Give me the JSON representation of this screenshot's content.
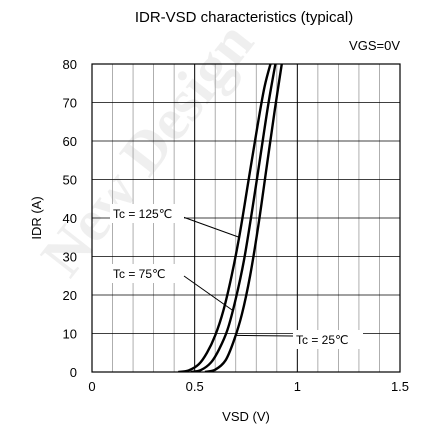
{
  "chart_data": {
    "type": "line",
    "title": "IDR-VSD characteristics (typical)",
    "condition": "VGS=0V",
    "xlabel": "VSD (V)",
    "ylabel": "IDR (A)",
    "xlim": [
      0,
      1.5
    ],
    "ylim": [
      0,
      80
    ],
    "xticks": [
      0,
      0.5,
      1,
      1.5
    ],
    "xtick_labels": [
      "0",
      "0.5",
      "1",
      "1.5"
    ],
    "yticks": [
      0,
      10,
      20,
      30,
      40,
      50,
      60,
      70,
      80
    ],
    "ytick_labels": [
      "0",
      "10",
      "20",
      "30",
      "40",
      "50",
      "60",
      "70",
      "80"
    ],
    "x_minor_step": 0.1,
    "grid": true,
    "series": [
      {
        "name": "Tc = 125℃",
        "x": [
          0.42,
          0.47,
          0.52,
          0.56,
          0.6,
          0.64,
          0.68,
          0.72,
          0.76,
          0.8,
          0.84,
          0.88
        ],
        "y": [
          0,
          0.4,
          2,
          5,
          9.5,
          16,
          25,
          36,
          49,
          62,
          74,
          82
        ]
      },
      {
        "name": "Tc = 75℃",
        "x": [
          0.48,
          0.53,
          0.58,
          0.62,
          0.66,
          0.7,
          0.74,
          0.78,
          0.82,
          0.86,
          0.9
        ],
        "y": [
          0,
          0.5,
          2.5,
          6,
          11,
          19,
          29,
          42,
          56,
          70,
          82
        ]
      },
      {
        "name": "Tc = 25℃",
        "x": [
          0.55,
          0.6,
          0.65,
          0.69,
          0.73,
          0.77,
          0.81,
          0.85,
          0.89,
          0.93
        ],
        "y": [
          0,
          0.6,
          3,
          8,
          15,
          25,
          38,
          53,
          68,
          82
        ]
      }
    ],
    "annotations": [
      {
        "text": "Tc = 125℃",
        "series": 0,
        "at": [
          0.85,
          0.31
        ]
      },
      {
        "text": "Tc = 75℃",
        "series": 1,
        "at": [
          0.8,
          0.21
        ]
      },
      {
        "text": "Tc = 25℃",
        "series": 2,
        "at": [
          0.75,
          0.14
        ]
      }
    ]
  },
  "watermark": "New Design"
}
